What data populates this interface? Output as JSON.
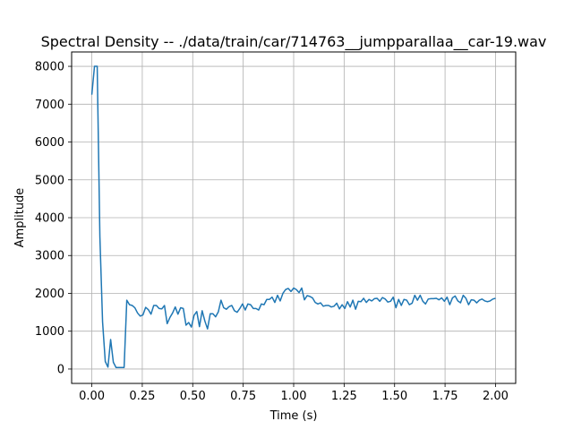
{
  "chart_data": {
    "type": "line",
    "title": "Spectral Density -- ./data/train/car/714763__jumpparallaa__car-19.wav",
    "xlabel": "Time (s)",
    "ylabel": "Amplitude",
    "xlim": [
      -0.1,
      2.1
    ],
    "ylim": [
      -380,
      8380
    ],
    "xticks": [
      0.0,
      0.25,
      0.5,
      0.75,
      1.0,
      1.25,
      1.5,
      1.75,
      2.0
    ],
    "xtick_labels": [
      "0.00",
      "0.25",
      "0.50",
      "0.75",
      "1.00",
      "1.25",
      "1.50",
      "1.75",
      "2.00"
    ],
    "yticks": [
      0,
      1000,
      2000,
      3000,
      4000,
      5000,
      6000,
      7000,
      8000
    ],
    "ytick_labels": [
      "0",
      "1000",
      "2000",
      "3000",
      "4000",
      "5000",
      "6000",
      "7000",
      "8000"
    ],
    "grid": true,
    "line_color": "#1f77b4",
    "x": [
      0.0,
      0.0133,
      0.0267,
      0.04,
      0.0533,
      0.0667,
      0.08,
      0.0933,
      0.1067,
      0.12,
      0.1333,
      0.1467,
      0.16,
      0.1733,
      0.1867,
      0.2,
      0.2133,
      0.2267,
      0.24,
      0.2533,
      0.2667,
      0.28,
      0.2933,
      0.3067,
      0.32,
      0.3333,
      0.3467,
      0.36,
      0.3733,
      0.3867,
      0.4,
      0.4133,
      0.4267,
      0.44,
      0.4533,
      0.4667,
      0.48,
      0.4933,
      0.5067,
      0.52,
      0.5333,
      0.5467,
      0.56,
      0.5733,
      0.5867,
      0.6,
      0.6133,
      0.6267,
      0.64,
      0.6533,
      0.6667,
      0.68,
      0.6933,
      0.7067,
      0.72,
      0.7333,
      0.7467,
      0.76,
      0.7733,
      0.7867,
      0.8,
      0.8133,
      0.8267,
      0.84,
      0.8533,
      0.8667,
      0.88,
      0.8933,
      0.9067,
      0.92,
      0.9333,
      0.9467,
      0.96,
      0.9733,
      0.9867,
      1.0,
      1.0133,
      1.0267,
      1.04,
      1.0533,
      1.0667,
      1.08,
      1.0933,
      1.1067,
      1.12,
      1.1333,
      1.1467,
      1.16,
      1.1733,
      1.1867,
      1.2,
      1.2133,
      1.2267,
      1.24,
      1.2533,
      1.2667,
      1.28,
      1.2933,
      1.3067,
      1.32,
      1.3333,
      1.3467,
      1.36,
      1.3733,
      1.3867,
      1.4,
      1.4133,
      1.4267,
      1.44,
      1.4533,
      1.4667,
      1.48,
      1.4933,
      1.5067,
      1.52,
      1.5333,
      1.5467,
      1.56,
      1.5733,
      1.5867,
      1.6,
      1.6133,
      1.6267,
      1.64,
      1.6533,
      1.6667,
      1.68,
      1.6933,
      1.7067,
      1.72,
      1.7333,
      1.7467,
      1.76,
      1.7733,
      1.7867,
      1.8,
      1.8133,
      1.8267,
      1.84,
      1.8533,
      1.8667,
      1.88,
      1.8933,
      1.9067,
      1.92,
      1.9333,
      1.9467,
      1.96,
      1.9733,
      1.9867,
      2.0
    ],
    "values": [
      7250,
      8000,
      8000,
      3500,
      1250,
      200,
      50,
      780,
      180,
      40,
      40,
      40,
      40,
      1820,
      1700,
      1680,
      1620,
      1480,
      1400,
      1430,
      1630,
      1570,
      1450,
      1680,
      1680,
      1600,
      1590,
      1680,
      1200,
      1360,
      1480,
      1640,
      1450,
      1620,
      1600,
      1160,
      1230,
      1110,
      1420,
      1520,
      1120,
      1540,
      1270,
      1060,
      1460,
      1460,
      1380,
      1510,
      1820,
      1620,
      1580,
      1650,
      1680,
      1540,
      1500,
      1600,
      1720,
      1560,
      1720,
      1700,
      1600,
      1600,
      1560,
      1720,
      1700,
      1840,
      1840,
      1900,
      1760,
      1950,
      1800,
      2000,
      2100,
      2130,
      2050,
      2140,
      2100,
      2020,
      2140,
      1830,
      1940,
      1920,
      1880,
      1760,
      1720,
      1750,
      1660,
      1680,
      1680,
      1640,
      1660,
      1740,
      1590,
      1700,
      1600,
      1780,
      1640,
      1820,
      1580,
      1790,
      1780,
      1870,
      1760,
      1840,
      1800,
      1860,
      1870,
      1790,
      1890,
      1850,
      1770,
      1790,
      1900,
      1620,
      1840,
      1680,
      1840,
      1820,
      1700,
      1740,
      1950,
      1820,
      1950,
      1790,
      1720,
      1850,
      1860,
      1860,
      1870,
      1830,
      1880,
      1790,
      1900,
      1700,
      1880,
      1930,
      1800,
      1750,
      1950,
      1870,
      1700,
      1830,
      1820,
      1750,
      1820,
      1850,
      1800,
      1780,
      1800,
      1850,
      1870
    ]
  }
}
